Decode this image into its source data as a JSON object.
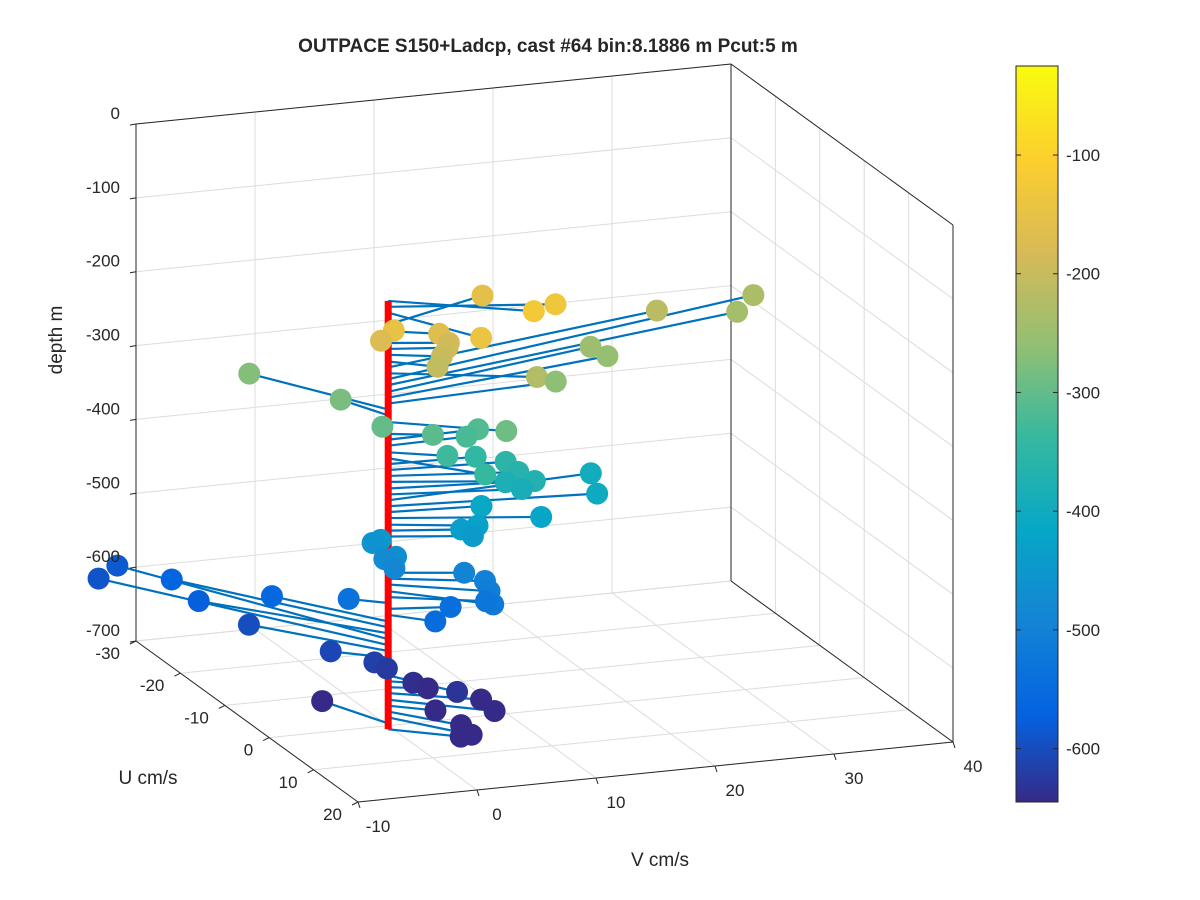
{
  "chart_data": {
    "type": "scatter",
    "title": "OUTPACE S150+Ladcp, cast #64 bin:8.1886 m  Pcut:5 m",
    "xlabel": "V cm/s",
    "ylabel": "U cm/s",
    "zlabel": "depth m",
    "xlim": [
      -10,
      40
    ],
    "ylim": [
      -30,
      20
    ],
    "zlim": [
      -700,
      0
    ],
    "xticks": [
      "-10",
      "0",
      "10",
      "20",
      "30",
      "40"
    ],
    "yticks": [
      "-30",
      "-20",
      "-10",
      "0",
      "10",
      "20"
    ],
    "zticks": [
      "0",
      "-100",
      "-200",
      "-300",
      "-400",
      "-500",
      "-600",
      "-700"
    ],
    "grid": true,
    "colorbar": {
      "label_values": [
        "-100",
        "-200",
        "-300",
        "-400",
        "-500",
        "-600"
      ],
      "range": [
        -645,
        -25
      ],
      "colormap": "parula"
    },
    "mooring_line_color": "#ff0000",
    "stick_color": "#0072bd",
    "profile": [
      {
        "depth": -125,
        "v": 9.7,
        "u": 6.8
      },
      {
        "depth": -133,
        "v": 12.6,
        "u": 3.9
      },
      {
        "depth": -141,
        "v": 4.3,
        "u": 9.4
      },
      {
        "depth": -149,
        "v": -0.8,
        "u": 3.4
      },
      {
        "depth": -157,
        "v": 9.9,
        "u": -5.3
      },
      {
        "depth": -166,
        "v": 3.5,
        "u": 2.1
      },
      {
        "depth": -174,
        "v": -0.9,
        "u": 0.8
      },
      {
        "depth": -182,
        "v": 4.5,
        "u": 1.6
      },
      {
        "depth": -190,
        "v": 4.5,
        "u": 1.3
      },
      {
        "depth": -198,
        "v": 3.8,
        "u": 1.9
      },
      {
        "depth": -207,
        "v": 3.1,
        "u": 2.8
      },
      {
        "depth": -215,
        "v": 25.6,
        "u": -8.1
      },
      {
        "depth": -223,
        "v": 10.6,
        "u": 5.1
      },
      {
        "depth": -231,
        "v": 35.5,
        "u": -12.9
      },
      {
        "depth": -239,
        "v": 33.2,
        "u": -10.4
      },
      {
        "depth": -248,
        "v": 19.5,
        "u": -6.7
      },
      {
        "depth": -256,
        "v": 20.4,
        "u": -5.3
      },
      {
        "depth": -264,
        "v": 14.6,
        "u": -1.4
      },
      {
        "depth": -272,
        "v": -6.6,
        "u": -13.6
      },
      {
        "depth": -280,
        "v": -1.9,
        "u": -5.6
      },
      {
        "depth": -289,
        "v": 7.8,
        "u": 5.7
      },
      {
        "depth": -297,
        "v": -0.3,
        "u": -0.5
      },
      {
        "depth": -305,
        "v": 3.2,
        "u": 1.5
      },
      {
        "depth": -313,
        "v": 7.7,
        "u": -0.4
      },
      {
        "depth": -321,
        "v": 6.7,
        "u": -0.3
      },
      {
        "depth": -330,
        "v": 4.0,
        "u": 2.6
      },
      {
        "depth": -338,
        "v": 5.5,
        "u": 7.1
      },
      {
        "depth": -346,
        "v": 7.2,
        "u": 0.4
      },
      {
        "depth": -354,
        "v": 9.5,
        "u": 1.0
      },
      {
        "depth": -362,
        "v": 10.0,
        "u": 2.5
      },
      {
        "depth": -370,
        "v": 10.9,
        "u": 3.8
      },
      {
        "depth": -379,
        "v": 9.3,
        "u": 1.5
      },
      {
        "depth": -387,
        "v": 10.4,
        "u": 2.2
      },
      {
        "depth": -395,
        "v": 17.7,
        "u": -1.8
      },
      {
        "depth": -403,
        "v": 16.7,
        "u": 2.3
      },
      {
        "depth": -411,
        "v": 7.5,
        "u": 0.9
      },
      {
        "depth": -419,
        "v": 11.4,
        "u": 3.9
      },
      {
        "depth": -428,
        "v": 6.5,
        "u": 2.7
      },
      {
        "depth": -436,
        "v": 5.5,
        "u": 1.7
      },
      {
        "depth": -444,
        "v": 6.3,
        "u": 2.2
      },
      {
        "depth": -452,
        "v": -0.3,
        "u": -0.9
      },
      {
        "depth": -460,
        "v": -0.6,
        "u": -1.9
      },
      {
        "depth": -469,
        "v": 0.4,
        "u": 0.7
      },
      {
        "depth": -477,
        "v": -0.1,
        "u": -0.6
      },
      {
        "depth": -485,
        "v": 0.3,
        "u": 0.6
      },
      {
        "depth": -493,
        "v": 5.6,
        "u": 2.1
      },
      {
        "depth": -501,
        "v": 6.9,
        "u": 3.3
      },
      {
        "depth": -509,
        "v": 6.8,
        "u": 4.6
      },
      {
        "depth": -518,
        "v": 6.4,
        "u": 6.5
      },
      {
        "depth": -526,
        "v": 6.8,
        "u": 3.8
      },
      {
        "depth": -534,
        "v": -2.5,
        "u": -2.2
      },
      {
        "depth": -542,
        "v": 4.8,
        "u": 1.2
      },
      {
        "depth": -550,
        "v": 2.8,
        "u": 3.1
      },
      {
        "depth": -559,
        "v": -6.0,
        "u": -10.1
      },
      {
        "depth": -567,
        "v": -11.1,
        "u": -19.0
      },
      {
        "depth": -575,
        "v": -10.7,
        "u": -14.0
      },
      {
        "depth": -583,
        "v": -12.5,
        "u": -27.5
      },
      {
        "depth": -591,
        "v": -14.6,
        "u": -26.1
      },
      {
        "depth": -599,
        "v": -7.6,
        "u": -11.0
      },
      {
        "depth": -608,
        "v": -3.6,
        "u": -3.3
      },
      {
        "depth": -616,
        "v": -0.9,
        "u": -0.7
      },
      {
        "depth": -624,
        "v": 0.0,
        "u": -0.3
      },
      {
        "depth": -632,
        "v": 3.4,
        "u": 6.4
      },
      {
        "depth": -640,
        "v": 1.7,
        "u": 1.1
      },
      {
        "depth": -648,
        "v": 2.8,
        "u": 1.4
      },
      {
        "depth": -656,
        "v": 6.2,
        "u": 4.3
      },
      {
        "depth": -665,
        "v": 6.7,
        "u": 6.0
      },
      {
        "depth": -673,
        "v": 3.0,
        "u": 2.6
      },
      {
        "depth": -681,
        "v": 4.0,
        "u": 5.7
      },
      {
        "depth": -689,
        "v": 4.4,
        "u": 7.0
      },
      {
        "depth": -697,
        "v": -2.6,
        "u": -7.9
      },
      {
        "depth": -705,
        "v": 4.6,
        "u": 4.0
      }
    ]
  }
}
